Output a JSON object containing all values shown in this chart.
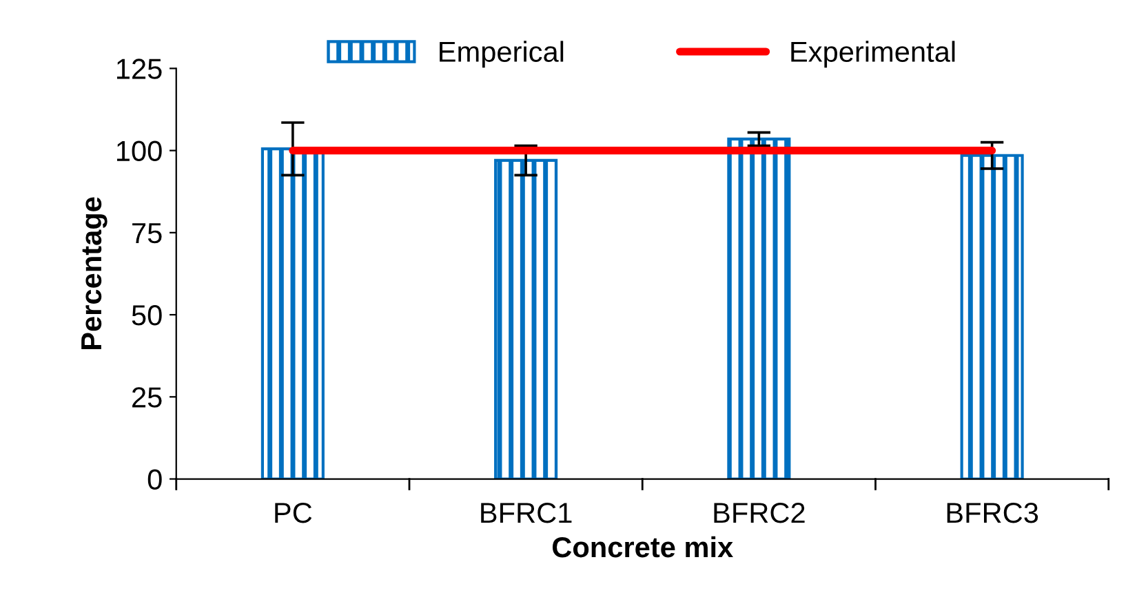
{
  "chart_data": {
    "type": "bar",
    "xlabel": "Concrete mix",
    "ylabel": "Percentage",
    "categories": [
      "PC",
      "BFRC1",
      "BFRC2",
      "BFRC3"
    ],
    "series": [
      {
        "name": "Emperical",
        "color": "#0070c0",
        "values": [
          100.5,
          97,
          103.5,
          98.5
        ],
        "errors": [
          8,
          4.5,
          2,
          4
        ]
      },
      {
        "name": "Experimental",
        "type": "line",
        "color": "#ff0000",
        "values": [
          100,
          100,
          100,
          100
        ]
      }
    ],
    "ylim": [
      0,
      125
    ],
    "yticks": [
      0,
      25,
      50,
      75,
      100,
      125
    ],
    "grid": false,
    "legend": "top",
    "marker": "none",
    "line_style": "solid"
  }
}
